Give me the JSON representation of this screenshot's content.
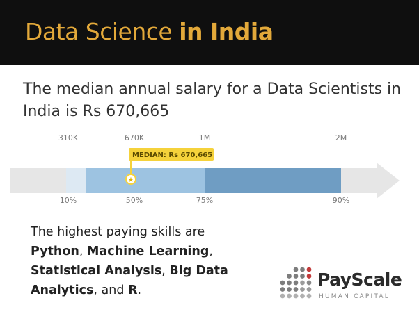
{
  "header": {
    "title_regular": "Data Science",
    "title_bold": "in India"
  },
  "subtitle": "The median annual salary for a Data Scientists in India is Rs 670,665",
  "chart_data": {
    "type": "range_bar",
    "salary_ticks": [
      "310K",
      "670K",
      "1M",
      "2M"
    ],
    "percentile_ticks": [
      "10%",
      "50%",
      "75%",
      "90%"
    ],
    "percentiles": [
      {
        "label": "10%",
        "salary": "310K"
      },
      {
        "label": "50%",
        "salary": "670K"
      },
      {
        "label": "75%",
        "salary": "1M"
      },
      {
        "label": "90%",
        "salary": "2M"
      }
    ],
    "median_label": "MEDIAN: Rs 670,665",
    "median_value": 670665,
    "colors": {
      "arrow": "#e6e6e6",
      "band_light": "#c7dff0",
      "band_mid": "#9dc3e1",
      "band_dark": "#6f9dc3",
      "median_badge": "#f5d23b"
    }
  },
  "skills": {
    "intro": "The highest paying skills are",
    "items": [
      "Python",
      "Machine Learning",
      "Statistical Analysis",
      "Big Data Analytics",
      "R"
    ],
    "sep1": ", ",
    "sep2": ", ",
    "sep3": ", ",
    "sep4": ", and ",
    "end": "."
  },
  "logo": {
    "name": "PayScale",
    "tagline": "HUMAN CAPITAL",
    "icon": "payscale-dots-icon"
  }
}
